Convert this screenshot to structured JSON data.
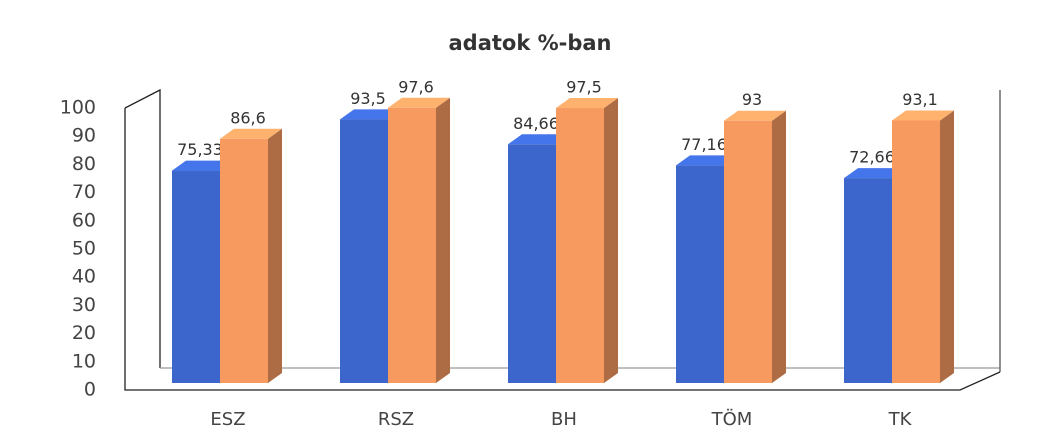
{
  "chart_data": {
    "type": "bar3d",
    "title": "adatok %-ban",
    "categories": [
      "ESZ",
      "RSZ",
      "BH",
      "TÖM",
      "TK"
    ],
    "series": [
      {
        "color": "#3c66cc",
        "values": [
          75.33,
          93.5,
          84.66,
          77.16,
          72.66
        ],
        "value_labels": [
          "75,33",
          "93,5",
          "84,66",
          "77,16",
          "72,66"
        ]
      },
      {
        "color": "#f79a60",
        "values": [
          86.6,
          97.6,
          97.5,
          93,
          93.1
        ],
        "value_labels": [
          "86,6",
          "97,6",
          "97,5",
          "93",
          "93,1"
        ]
      }
    ],
    "ylim": [
      0,
      100
    ],
    "yticks": [
      0,
      10,
      20,
      30,
      40,
      50,
      60,
      70,
      80,
      90,
      100
    ]
  }
}
